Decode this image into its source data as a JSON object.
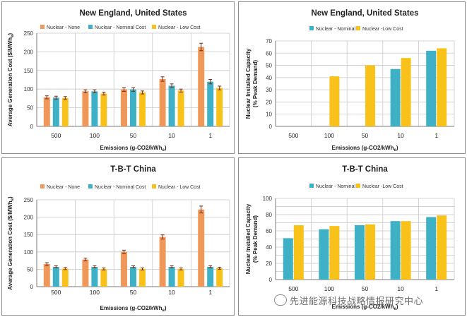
{
  "colors": {
    "nuclear_none": "#f0975a",
    "nominal": "#3fb1c6",
    "low": "#f9c21b",
    "grid": "#c8c8c8",
    "axis": "#7a7a7a",
    "error": "#7a2a10"
  },
  "watermark": "先进能源科技战略情报研究中心",
  "chart_data": [
    {
      "type": "bar",
      "title": "New England, United States",
      "xlabel": "Emissions (g-CO2/kWh",
      "xlabel_sub": "e",
      "xlabel_close": ")",
      "ylabel": "Average Generation Cost ($/MWh",
      "ylabel_sub": "e",
      "ylabel_close": ")",
      "categories": [
        "500",
        "100",
        "50",
        "10",
        "1"
      ],
      "ylim": [
        0,
        250
      ],
      "yticks": [
        0,
        50,
        100,
        150,
        200,
        250
      ],
      "grid": true,
      "legend": "top",
      "error_bars": true,
      "series": [
        {
          "name": "Nuclear - None",
          "color_key": "nuclear_none",
          "values": [
            78,
            94,
            99,
            127,
            213
          ],
          "errors": [
            4,
            4,
            5,
            6,
            10
          ]
        },
        {
          "name": "Nuclear - Nominal Cost",
          "color_key": "nominal",
          "values": [
            77,
            94,
            99,
            109,
            120
          ],
          "errors": [
            4,
            4,
            5,
            5,
            6
          ]
        },
        {
          "name": "Nuclear - Low Cost",
          "color_key": "low",
          "values": [
            76,
            88,
            91,
            96,
            103
          ],
          "errors": [
            4,
            4,
            4,
            4,
            5
          ]
        }
      ]
    },
    {
      "type": "bar",
      "title": "New England, United States",
      "xlabel": "Emissions (g-CO2/kWh",
      "xlabel_sub": "e",
      "xlabel_close": ")",
      "ylabel": "Nuclear Installed Capacity",
      "ylabel2": "(% Peak Demand)",
      "categories": [
        "500",
        "100",
        "50",
        "10",
        "1"
      ],
      "ylim": [
        0,
        70
      ],
      "yticks": [
        0,
        10,
        20,
        30,
        40,
        50,
        60,
        70
      ],
      "grid": true,
      "legend": "top",
      "error_bars": false,
      "series": [
        {
          "name": "Nuclear - Nominal",
          "color_key": "nominal",
          "values": [
            0,
            0,
            0,
            47,
            62
          ]
        },
        {
          "name": "Nuclear -Low Cost",
          "color_key": "low",
          "values": [
            0,
            41,
            50,
            56,
            64
          ]
        }
      ]
    },
    {
      "type": "bar",
      "title": "T-B-T China",
      "xlabel": "Emissions (g-CO2/kWh",
      "xlabel_sub": "e",
      "xlabel_close": ")",
      "ylabel": "Average Generation Cost ($/MWh",
      "ylabel_sub": "e",
      "ylabel_close": ")",
      "categories": [
        "500",
        "100",
        "50",
        "10",
        "1"
      ],
      "ylim": [
        0,
        250
      ],
      "yticks": [
        0,
        50,
        100,
        150,
        200,
        250
      ],
      "grid": true,
      "legend": "top",
      "error_bars": true,
      "series": [
        {
          "name": "Nuclear - None",
          "color_key": "nuclear_none",
          "values": [
            65,
            78,
            100,
            143,
            222
          ],
          "errors": [
            4,
            4,
            5,
            6,
            10
          ]
        },
        {
          "name": "Nuclear - Nominal Cost",
          "color_key": "nominal",
          "values": [
            57,
            57,
            57,
            57,
            57
          ],
          "errors": [
            3,
            3,
            3,
            3,
            3
          ]
        },
        {
          "name": "Nuclear - Low Cost",
          "color_key": "low",
          "values": [
            52,
            51,
            51,
            51,
            53
          ],
          "errors": [
            3,
            3,
            3,
            3,
            3
          ]
        }
      ]
    },
    {
      "type": "bar",
      "title": "T-B-T China",
      "xlabel": "Emissions (g-CO2/kWh",
      "xlabel_sub": "e",
      "xlabel_close": ")",
      "ylabel": "Nuclear Installed Capacity",
      "ylabel2": "(% Peak Demand)",
      "categories": [
        "500",
        "100",
        "50",
        "10",
        "1"
      ],
      "ylim": [
        0,
        100
      ],
      "yticks": [
        0,
        10,
        20,
        30,
        40,
        50,
        60,
        70,
        80,
        90,
        100
      ],
      "ytick_labels": [
        0,
        20,
        40,
        60,
        80,
        100
      ],
      "grid": true,
      "legend": "top",
      "error_bars": false,
      "series": [
        {
          "name": "Nuclear - Nominal",
          "color_key": "nominal",
          "values": [
            51,
            62,
            67,
            72,
            77
          ]
        },
        {
          "name": "Nuclear -Low Cost",
          "color_key": "low",
          "values": [
            67,
            66,
            68,
            72,
            79
          ]
        }
      ]
    }
  ]
}
